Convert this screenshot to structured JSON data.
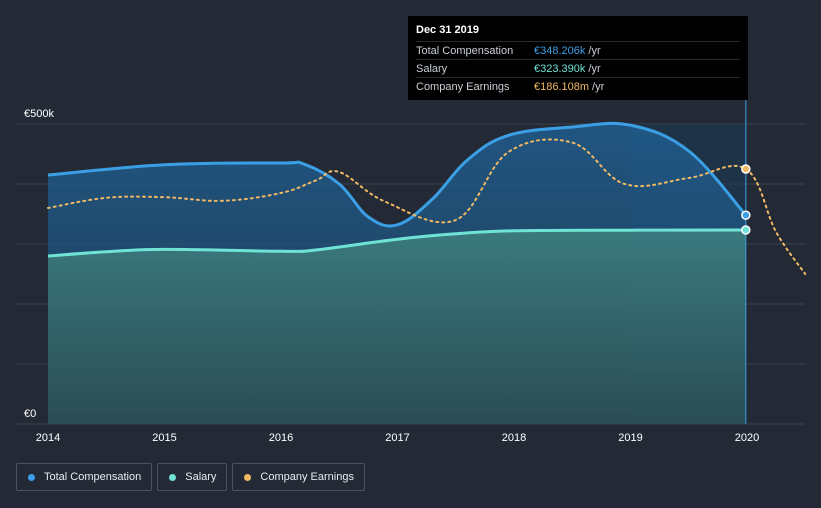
{
  "colors": {
    "background": "#232a36",
    "total_compensation": "#3b9fe6",
    "salary": "#6fe3d6",
    "company_earnings": "#f0b964",
    "grid": "#3a414c"
  },
  "tooltip": {
    "date": "Dec 31 2019",
    "rows": [
      {
        "label": "Total Compensation",
        "value": "€348.206k",
        "unit": "/yr",
        "color": "#3b9fe6"
      },
      {
        "label": "Salary",
        "value": "€323.390k",
        "unit": "/yr",
        "color": "#6fe3d6"
      },
      {
        "label": "Company Earnings",
        "value": "€186.108m",
        "unit": "/yr",
        "color": "#f0b964"
      }
    ]
  },
  "legend": [
    {
      "label": "Total Compensation",
      "color": "#3b9fe6"
    },
    {
      "label": "Salary",
      "color": "#6fe3d6"
    },
    {
      "label": "Company Earnings",
      "color": "#f0b964"
    }
  ],
  "chart_data": {
    "type": "area",
    "title": "",
    "xlabel": "",
    "ylabel": "",
    "y_tick_labels": [
      "€500k",
      "€0"
    ],
    "y_ticks": [
      500,
      0
    ],
    "ylim": [
      0,
      500
    ],
    "xlim": [
      2014,
      2020.5
    ],
    "x_tick_labels": [
      "2014",
      "2015",
      "2016",
      "2017",
      "2018",
      "2019",
      "2020"
    ],
    "x_ticks": [
      2014,
      2015,
      2016,
      2017,
      2018,
      2019,
      2020
    ],
    "highlight_x": 2019.99,
    "series": [
      {
        "name": "Total Compensation",
        "unit": "€k",
        "points": [
          [
            2014,
            415
          ],
          [
            2015,
            432
          ],
          [
            2016,
            435
          ],
          [
            2016.2,
            433
          ],
          [
            2016.5,
            400
          ],
          [
            2016.75,
            345
          ],
          [
            2017,
            332
          ],
          [
            2017.3,
            375
          ],
          [
            2017.6,
            440
          ],
          [
            2017.95,
            481
          ],
          [
            2018.5,
            495
          ],
          [
            2019,
            498
          ],
          [
            2019.5,
            455
          ],
          [
            2019.99,
            348
          ]
        ]
      },
      {
        "name": "Salary",
        "unit": "€k",
        "points": [
          [
            2014,
            280
          ],
          [
            2014.5,
            287
          ],
          [
            2015,
            291
          ],
          [
            2016,
            288
          ],
          [
            2016.3,
            290
          ],
          [
            2017,
            308
          ],
          [
            2017.5,
            317
          ],
          [
            2018,
            322
          ],
          [
            2019,
            323
          ],
          [
            2019.99,
            323.4
          ]
        ]
      },
      {
        "name": "Company Earnings",
        "unit": "€k scaled",
        "style": "dotted",
        "points": [
          [
            2014,
            360
          ],
          [
            2014.5,
            377
          ],
          [
            2015,
            378
          ],
          [
            2015.5,
            372
          ],
          [
            2016,
            385
          ],
          [
            2016.3,
            406
          ],
          [
            2016.5,
            420
          ],
          [
            2016.9,
            370
          ],
          [
            2017.5,
            340
          ],
          [
            2017.95,
            453
          ],
          [
            2018.5,
            469
          ],
          [
            2018.95,
            400
          ],
          [
            2019.5,
            410
          ],
          [
            2019.99,
            425
          ],
          [
            2020.25,
            320
          ],
          [
            2020.5,
            250
          ]
        ]
      }
    ]
  }
}
